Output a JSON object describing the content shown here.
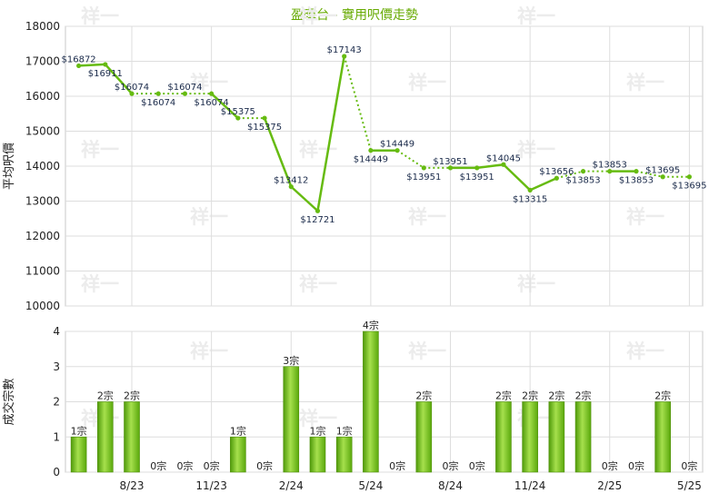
{
  "title": "盈暉台 - 實用呎價走勢",
  "watermark": "祥一",
  "chart_data": [
    {
      "type": "line",
      "title": "盈暉台 - 實用呎價走勢",
      "ylabel": "平均呎價",
      "ylim": [
        10000,
        18000
      ],
      "yticks": [
        "10000",
        "11000",
        "12000",
        "13000",
        "14000",
        "15000",
        "16000",
        "17000",
        "18000"
      ],
      "xtick_labels": [
        "8/23",
        "11/23",
        "2/24",
        "5/24",
        "8/24",
        "11/24",
        "2/25",
        "5/25"
      ],
      "grid": true,
      "line_color": "#66bb11",
      "series": [
        {
          "values": [
            16872,
            16911,
            16074,
            16074,
            16074,
            16074,
            15375,
            15375,
            13412,
            12721,
            17143,
            14449,
            14449,
            13951,
            13951,
            13951,
            14045,
            13315,
            13656,
            13853,
            13853,
            13853,
            13695,
            13695
          ],
          "labels": [
            "$16872",
            "$16911",
            "$16074",
            "$16074",
            "$16074",
            "$16074",
            "$15375",
            "$15375",
            "$13412",
            "$12721",
            "$17143",
            "$14449",
            "$14449",
            "$13951",
            "$13951",
            "$13951",
            "$14045",
            "$13315",
            "$13656",
            "$13853",
            "$13853",
            "$13853",
            "$13695",
            "$13695"
          ],
          "has_transaction": [
            true,
            true,
            true,
            false,
            false,
            false,
            true,
            false,
            true,
            true,
            true,
            false,
            true,
            false,
            false,
            true,
            true,
            true,
            true,
            false,
            false,
            true,
            false,
            false
          ]
        }
      ]
    },
    {
      "type": "bar",
      "ylabel": "成交宗數",
      "ylim": [
        0,
        4
      ],
      "yticks": [
        "0",
        "1",
        "2",
        "3",
        "4"
      ],
      "xtick_labels": [
        "8/23",
        "11/23",
        "2/24",
        "5/24",
        "8/24",
        "11/24",
        "2/25",
        "5/25"
      ],
      "bar_color": "#66bb11",
      "series": [
        {
          "values": [
            1,
            2,
            2,
            0,
            0,
            0,
            1,
            0,
            3,
            1,
            1,
            4,
            0,
            2,
            0,
            0,
            2,
            2,
            2,
            2,
            0,
            0,
            2,
            0
          ],
          "labels": [
            "1宗",
            "2宗",
            "2宗",
            "0宗",
            "0宗",
            "0宗",
            "1宗",
            "0宗",
            "3宗",
            "1宗",
            "1宗",
            "4宗",
            "0宗",
            "2宗",
            "0宗",
            "0宗",
            "2宗",
            "2宗",
            "2宗",
            "2宗",
            "0宗",
            "0宗",
            "2宗",
            "0宗"
          ]
        }
      ]
    }
  ]
}
